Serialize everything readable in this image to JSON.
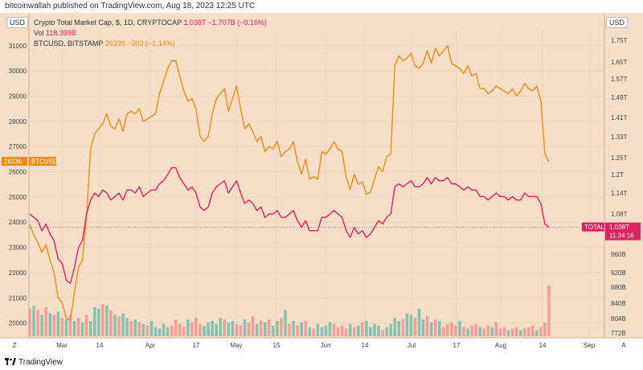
{
  "topbar": {
    "publisher": "bitcoinwallah published on TradingView.com, Aug 18, 2023 12:25 UTC"
  },
  "legend": {
    "line1_prefix": "Crypto Total Market Cap, $, 1D, CRYPTOCAP",
    "line1_value": "1.038T  −1.707B (−0.16%)",
    "line2_prefix": "Vol",
    "line2_value": "118.399B",
    "line3_prefix": "BTCUSD, BITSTAMP",
    "line3_value": "26339  −303 (−1.14%)"
  },
  "axes": {
    "left_unit": "USD",
    "right_unit": "USD",
    "left_scale_letter": "Z",
    "right_scale_letter": "A"
  },
  "tags": {
    "btc_value": "26339",
    "btc_name": "BTCUSD",
    "total_name": "TOTAL",
    "total_value": "1.038T",
    "total_countdown": "11:34:16"
  },
  "footer": {
    "brand": "TradingView"
  },
  "colors": {
    "background": "#f6dfc8",
    "btc": "#f08a12",
    "total": "#e0205f",
    "vol_up": "#7cc2b0",
    "vol_down": "#f29b93",
    "grid": "#ecd2b8"
  },
  "chart_data": {
    "type": "line",
    "x_ticks": [
      "Mar",
      "14",
      "Apr",
      "17",
      "May",
      "15",
      "Jun",
      "14",
      "Jul",
      "17",
      "Aug",
      "14",
      "Sep"
    ],
    "left_ticks": [
      "31000",
      "30000",
      "29000",
      "28000",
      "27000",
      "26000",
      "25000",
      "24000",
      "23000",
      "22000",
      "21000",
      "20000"
    ],
    "right_ticks": [
      "1.75T",
      "1.65T",
      "1.57T",
      "1.49T",
      "1.41T",
      "1.33T",
      "1.25T",
      "1.2T",
      "1.14T",
      "1.08T",
      "960B",
      "920B",
      "880B",
      "840B",
      "804B",
      "772B"
    ],
    "ylim_left": [
      19700,
      31600
    ],
    "series": [
      {
        "name": "BTCUSD, BITSTAMP",
        "axis": "left",
        "values": [
          23900,
          23500,
          23200,
          22800,
          23100,
          22500,
          22000,
          21000,
          20800,
          20200,
          20100,
          21200,
          22200,
          22500,
          24200,
          26900,
          27500,
          27700,
          27900,
          28300,
          27800,
          27700,
          28100,
          27600,
          28300,
          28400,
          28300,
          28500,
          28000,
          28100,
          28200,
          28300,
          29100,
          29600,
          30100,
          30400,
          30400,
          29800,
          29200,
          28800,
          28900,
          28500,
          27400,
          27200,
          27400,
          28300,
          28900,
          29100,
          29300,
          28400,
          28900,
          29400,
          28500,
          27700,
          27900,
          27600,
          27200,
          27400,
          26800,
          27000,
          26900,
          27200,
          26600,
          26800,
          26900,
          27200,
          26400,
          25900,
          26500,
          25700,
          25800,
          25700,
          26800,
          26700,
          26900,
          27200,
          26900,
          26800,
          25800,
          25300,
          25900,
          25500,
          25600,
          25100,
          25200,
          25700,
          26200,
          26000,
          26600,
          26700,
          30200,
          30600,
          30400,
          30500,
          30700,
          30200,
          30100,
          30300,
          30800,
          30300,
          30900,
          30600,
          30800,
          31000,
          30300,
          30200,
          30100,
          29900,
          30200,
          29800,
          29900,
          29300,
          29300,
          29100,
          29200,
          29400,
          29300,
          29200,
          29100,
          29300,
          29000,
          29200,
          29500,
          29300,
          29200,
          29400,
          28800,
          26700,
          26400
        ]
      },
      {
        "name": "Crypto Total Market Cap",
        "axis": "right",
        "values": [
          1.08,
          1.07,
          1.06,
          1.03,
          1.05,
          1.02,
          1.0,
          0.95,
          0.94,
          0.9,
          0.89,
          0.93,
          0.98,
          1.0,
          1.08,
          1.12,
          1.14,
          1.13,
          1.15,
          1.14,
          1.12,
          1.13,
          1.14,
          1.12,
          1.15,
          1.15,
          1.14,
          1.16,
          1.13,
          1.14,
          1.15,
          1.15,
          1.17,
          1.18,
          1.2,
          1.22,
          1.22,
          1.19,
          1.17,
          1.15,
          1.16,
          1.14,
          1.1,
          1.09,
          1.1,
          1.14,
          1.16,
          1.17,
          1.18,
          1.14,
          1.16,
          1.18,
          1.14,
          1.11,
          1.12,
          1.11,
          1.09,
          1.1,
          1.07,
          1.08,
          1.08,
          1.09,
          1.07,
          1.07,
          1.08,
          1.09,
          1.06,
          1.04,
          1.06,
          1.03,
          1.03,
          1.03,
          1.07,
          1.07,
          1.08,
          1.09,
          1.08,
          1.07,
          1.03,
          1.01,
          1.04,
          1.02,
          1.03,
          1.01,
          1.02,
          1.04,
          1.06,
          1.05,
          1.07,
          1.08,
          1.16,
          1.17,
          1.16,
          1.17,
          1.18,
          1.16,
          1.16,
          1.17,
          1.19,
          1.17,
          1.19,
          1.18,
          1.18,
          1.19,
          1.17,
          1.17,
          1.16,
          1.15,
          1.16,
          1.15,
          1.15,
          1.13,
          1.13,
          1.12,
          1.13,
          1.14,
          1.13,
          1.13,
          1.12,
          1.13,
          1.12,
          1.12,
          1.14,
          1.13,
          1.13,
          1.13,
          1.11,
          1.05,
          1.04
        ]
      }
    ],
    "volume": {
      "name": "Vol",
      "values": [
        0.9,
        1.0,
        0.85,
        0.7,
        0.95,
        0.75,
        0.7,
        0.8,
        0.6,
        0.55,
        0.7,
        0.5,
        0.6,
        0.45,
        0.7,
        0.5,
        0.95,
        0.9,
        1.05,
        1.0,
        0.85,
        0.7,
        0.65,
        0.75,
        0.6,
        0.5,
        0.55,
        0.45,
        0.4,
        0.35,
        0.5,
        0.3,
        0.25,
        0.4,
        0.3,
        0.35,
        0.55,
        0.4,
        0.3,
        0.55,
        0.45,
        0.6,
        0.4,
        0.35,
        0.45,
        0.5,
        0.4,
        0.6,
        0.55,
        0.45,
        0.5,
        0.4,
        0.35,
        0.55,
        0.45,
        0.65,
        0.4,
        0.5,
        0.45,
        0.55,
        0.35,
        0.5,
        0.6,
        0.85,
        0.4,
        0.5,
        0.35,
        0.45,
        0.5,
        0.3,
        0.25,
        0.4,
        0.3,
        0.35,
        0.45,
        0.4,
        0.3,
        0.35,
        0.25,
        0.4,
        0.3,
        0.35,
        0.45,
        0.5,
        0.3,
        0.4,
        0.35,
        0.2,
        0.3,
        0.4,
        0.6,
        0.5,
        0.55,
        0.75,
        0.7,
        0.6,
        0.9,
        0.55,
        0.65,
        0.45,
        0.55,
        0.5,
        0.3,
        0.4,
        0.45,
        0.35,
        0.5,
        0.3,
        0.25,
        0.35,
        0.4,
        0.3,
        0.25,
        0.35,
        0.3,
        0.45,
        0.25,
        0.3,
        0.2,
        0.25,
        0.3,
        0.2,
        0.25,
        0.3,
        0.35,
        0.2,
        0.3,
        0.45,
        0.55
      ],
      "up": [
        0,
        1,
        0,
        1,
        0,
        1,
        0,
        1,
        0,
        1,
        0,
        1,
        0,
        1,
        0,
        1,
        1,
        1,
        0,
        1,
        0,
        1,
        0,
        1,
        1,
        0,
        1,
        0,
        1,
        0,
        1,
        1,
        1,
        1,
        1,
        0,
        0,
        0,
        0,
        1,
        0,
        0,
        0,
        1,
        1,
        1,
        1,
        1,
        0,
        1,
        1,
        0,
        0,
        1,
        0,
        0,
        1,
        0,
        1,
        0,
        1,
        1,
        0,
        1,
        0,
        1,
        0,
        1,
        0,
        1,
        0,
        1,
        1,
        1,
        1,
        0,
        0,
        0,
        0,
        1,
        0,
        1,
        0,
        1,
        1,
        1,
        1,
        0,
        1,
        1,
        1,
        1,
        0,
        1,
        1,
        0,
        1,
        1,
        0,
        1,
        0,
        1,
        0,
        0,
        0,
        0,
        1,
        0,
        1,
        0,
        0,
        1,
        0,
        0,
        1,
        0,
        0,
        0,
        1,
        0,
        0,
        1,
        0,
        0,
        0,
        1,
        0,
        0,
        0
      ],
      "last_spike": 1.65
    }
  }
}
